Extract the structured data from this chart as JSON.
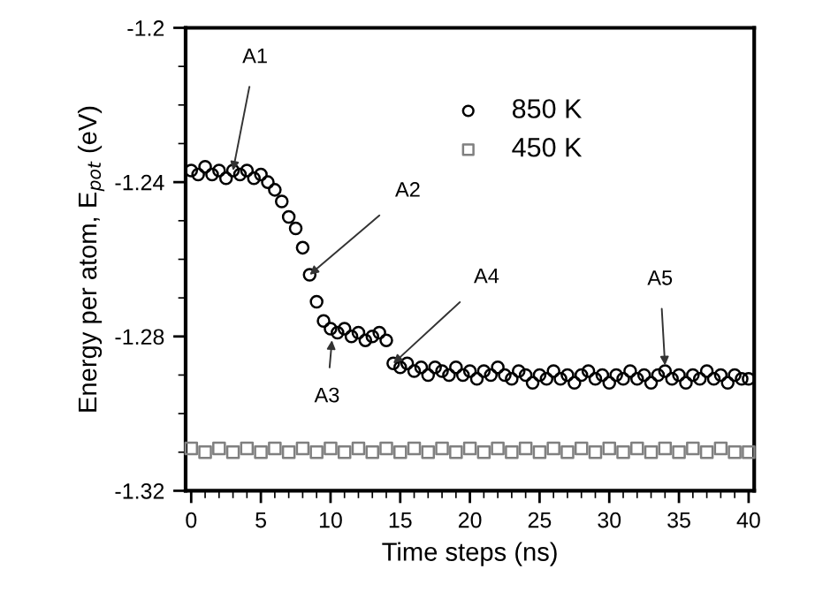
{
  "chart_data": {
    "type": "scatter",
    "xlabel": "Time steps (ns)",
    "ylabel": "Energy per atom, E$_{pot}$ (eV)",
    "x": [
      0,
      0.5,
      1,
      1.5,
      2,
      2.5,
      3,
      3.5,
      4,
      4.5,
      5,
      5.5,
      6,
      6.5,
      7,
      7.5,
      8,
      8.5,
      9,
      9.5,
      10,
      10.5,
      11,
      11.5,
      12,
      12.5,
      13,
      13.5,
      14,
      14.5,
      15,
      15.5,
      16,
      16.5,
      17,
      17.5,
      18,
      18.5,
      19,
      19.5,
      20,
      20.5,
      21,
      21.5,
      22,
      22.5,
      23,
      23.5,
      24,
      24.5,
      25,
      25.5,
      26,
      26.5,
      27,
      27.5,
      28,
      28.5,
      29,
      29.5,
      30,
      30.5,
      31,
      31.5,
      32,
      32.5,
      33,
      33.5,
      34,
      34.5,
      35,
      35.5,
      36,
      36.5,
      37,
      37.5,
      38,
      38.5,
      39,
      39.5,
      40
    ],
    "series": [
      {
        "name": "850 K",
        "color": "#000000",
        "marker": "circle",
        "values": [
          -1.237,
          -1.238,
          -1.236,
          -1.238,
          -1.237,
          -1.239,
          -1.237,
          -1.238,
          -1.237,
          -1.239,
          -1.238,
          -1.24,
          -1.242,
          -1.245,
          -1.249,
          -1.252,
          -1.257,
          -1.264,
          -1.271,
          -1.276,
          -1.278,
          -1.279,
          -1.278,
          -1.28,
          -1.279,
          -1.281,
          -1.28,
          -1.279,
          -1.281,
          -1.287,
          -1.288,
          -1.287,
          -1.289,
          -1.288,
          -1.29,
          -1.288,
          -1.289,
          -1.29,
          -1.288,
          -1.29,
          -1.289,
          -1.291,
          -1.289,
          -1.29,
          -1.288,
          -1.29,
          -1.291,
          -1.289,
          -1.29,
          -1.292,
          -1.29,
          -1.291,
          -1.289,
          -1.291,
          -1.29,
          -1.292,
          -1.29,
          -1.289,
          -1.291,
          -1.29,
          -1.292,
          -1.29,
          -1.291,
          -1.289,
          -1.291,
          -1.29,
          -1.292,
          -1.29,
          -1.289,
          -1.291,
          -1.29,
          -1.292,
          -1.29,
          -1.291,
          -1.289,
          -1.291,
          -1.29,
          -1.292,
          -1.29,
          -1.291,
          -1.291
        ]
      },
      {
        "name": "450 K",
        "color": "#808080",
        "marker": "square",
        "x": [
          0,
          1,
          2,
          3,
          4,
          5,
          6,
          7,
          8,
          9,
          10,
          11,
          12,
          13,
          14,
          15,
          16,
          17,
          18,
          19,
          20,
          21,
          22,
          23,
          24,
          25,
          26,
          27,
          28,
          29,
          30,
          31,
          32,
          33,
          34,
          35,
          36,
          37,
          38,
          39,
          40
        ],
        "values": [
          -1.309,
          -1.31,
          -1.309,
          -1.31,
          -1.309,
          -1.31,
          -1.309,
          -1.31,
          -1.309,
          -1.31,
          -1.309,
          -1.31,
          -1.309,
          -1.31,
          -1.309,
          -1.31,
          -1.309,
          -1.31,
          -1.309,
          -1.31,
          -1.309,
          -1.31,
          -1.309,
          -1.31,
          -1.309,
          -1.31,
          -1.309,
          -1.31,
          -1.309,
          -1.31,
          -1.309,
          -1.31,
          -1.309,
          -1.31,
          -1.309,
          -1.31,
          -1.309,
          -1.31,
          -1.309,
          -1.31,
          -1.31
        ]
      }
    ],
    "xlim": [
      -0.4,
      40.4
    ],
    "xticks": [
      0,
      5,
      10,
      15,
      20,
      25,
      30,
      35,
      40
    ],
    "ylim": [
      -1.32,
      -1.2
    ],
    "yticks": [
      -1.32,
      -1.28,
      -1.24,
      -1.2
    ],
    "annotations": [
      {
        "text": "A1",
        "x": 3,
        "y": -1.237
      },
      {
        "text": "A2",
        "x": 8.5,
        "y": -1.264
      },
      {
        "text": "A3",
        "x": 10.1,
        "y": -1.281
      },
      {
        "text": "A4",
        "x": 14.5,
        "y": -1.287
      },
      {
        "text": "A5",
        "x": 34.0,
        "y": -1.2875
      }
    ],
    "legend": "top right",
    "grid": false
  }
}
